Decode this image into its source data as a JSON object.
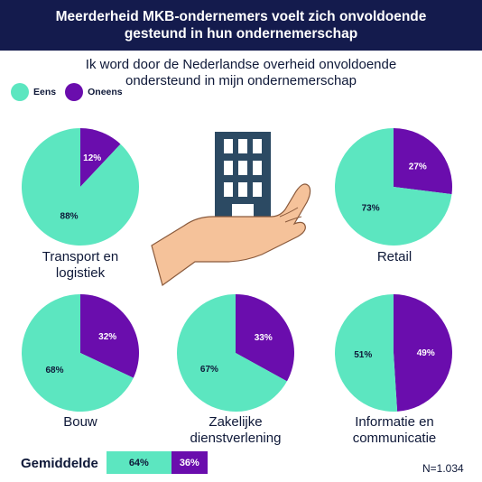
{
  "header": {
    "title": "Meerderheid MKB-ondernemers voelt zich onvoldoende gesteund in hun ondernemerschap"
  },
  "subtitle": "Ik word door de Nederlandse overheid onvoldoende ondersteund in mijn ondernemerschap",
  "colors": {
    "eens": "#5ce6c0",
    "oneens": "#6a0dad",
    "header_bg": "#141b4d",
    "text": "#0e1838"
  },
  "chart_data": {
    "type": "pie",
    "legend": [
      "Eens",
      "Oneens"
    ],
    "legend_position": "top-left",
    "pies": [
      {
        "category": "Transport en logistiek",
        "values": [
          88,
          12
        ]
      },
      {
        "category": "Retail",
        "values": [
          73,
          27
        ]
      },
      {
        "category": "Bouw",
        "values": [
          68,
          32
        ]
      },
      {
        "category": "Zakelijke dienstverlening",
        "values": [
          67,
          33
        ]
      },
      {
        "category": "Informatie en communicatie",
        "values": [
          51,
          49
        ]
      }
    ],
    "average": {
      "label": "Gemiddelde",
      "values": [
        64,
        36
      ]
    },
    "sample": "N=1.034"
  },
  "labels": {
    "pie0_line1": "Transport en",
    "pie0_line2": "logistiek",
    "pie1_line1": "Retail",
    "pie2_line1": "Bouw",
    "pie3_line1": "Zakelijke",
    "pie3_line2": "dienstverlening",
    "pie4_line1": "Informatie en",
    "pie4_line2": "communicatie",
    "pct_eens_0": "88%",
    "pct_oneens_0": "12%",
    "pct_eens_1": "73%",
    "pct_oneens_1": "27%",
    "pct_eens_2": "68%",
    "pct_oneens_2": "32%",
    "pct_eens_3": "67%",
    "pct_oneens_3": "33%",
    "pct_eens_4": "51%",
    "pct_oneens_4": "49%",
    "avg_eens": "64%",
    "avg_oneens": "36%"
  },
  "illustration": "hand-holding-building-icon"
}
